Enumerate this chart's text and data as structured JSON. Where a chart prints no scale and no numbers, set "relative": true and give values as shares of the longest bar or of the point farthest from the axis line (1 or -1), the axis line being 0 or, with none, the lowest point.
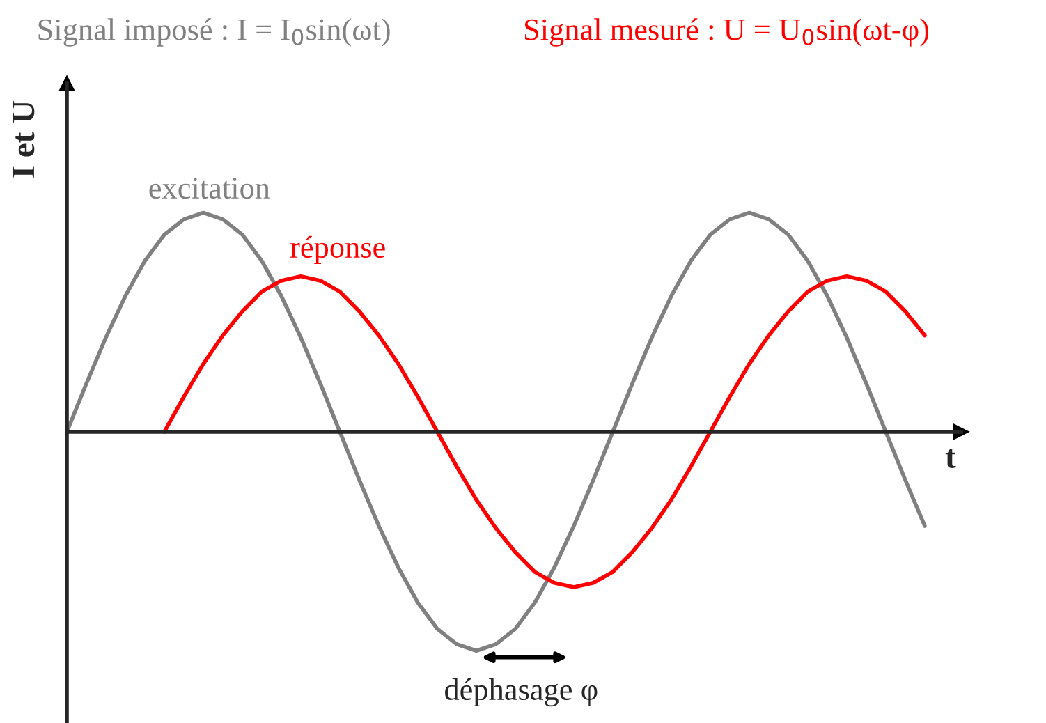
{
  "chart_data": {
    "type": "line",
    "relative": true,
    "title": "Signal imposé : I = I$_{0}$sin(ωt)",
    "subtitle": "Signal mesuré : U = U$_{0}$sin(ωt-φ)",
    "xlabel": "t",
    "ylabel": "I et U",
    "annotations": [
      "déphasage φ"
    ],
    "categories": [
      null,
      null,
      null,
      null,
      null,
      null,
      null,
      null,
      null,
      null,
      null,
      null,
      null,
      null,
      null,
      null,
      null,
      null,
      null,
      null,
      null,
      null,
      null,
      null,
      null,
      null,
      null,
      null,
      null,
      null,
      null,
      null,
      null,
      null,
      null,
      null,
      null,
      null,
      null,
      null,
      null,
      null,
      null,
      null,
      null
    ],
    "series": [
      {
        "name": "excitation",
        "color": "#808080",
        "values": [
          0,
          0.22,
          0.43,
          0.62,
          0.78,
          0.9,
          0.97,
          1,
          0.97,
          0.9,
          0.78,
          0.62,
          0.43,
          0.22,
          0,
          -0.22,
          -0.43,
          -0.62,
          -0.78,
          -0.9,
          -0.97,
          -1,
          -0.97,
          -0.9,
          -0.78,
          -0.62,
          -0.43,
          -0.22,
          0,
          0.22,
          0.43,
          0.62,
          0.78,
          0.9,
          0.97,
          1,
          0.97,
          0.9,
          0.78,
          0.62,
          0.43,
          0.22,
          0,
          -0.22,
          -0.43
        ]
      },
      {
        "name": "réponse",
        "color": "#ff0000",
        "values": [
          null,
          null,
          null,
          null,
          null,
          0,
          0.16,
          0.31,
          0.44,
          0.55,
          0.64,
          0.69,
          0.71,
          0.69,
          0.64,
          0.55,
          0.44,
          0.31,
          0.16,
          0,
          -0.16,
          -0.31,
          -0.44,
          -0.55,
          -0.64,
          -0.69,
          -0.71,
          -0.69,
          -0.64,
          -0.55,
          -0.44,
          -0.31,
          -0.16,
          0,
          0.16,
          0.31,
          0.44,
          0.55,
          0.64,
          0.69,
          0.71,
          0.69,
          0.64,
          0.55,
          0.44
        ]
      }
    ],
    "legend": false,
    "marker": "none",
    "line_style": "solid"
  }
}
